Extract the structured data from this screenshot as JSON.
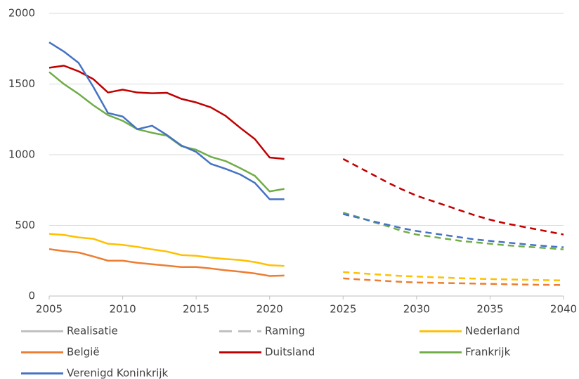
{
  "chart_data": {
    "type": "line",
    "x": [
      2005,
      2006,
      2007,
      2008,
      2009,
      2010,
      2011,
      2012,
      2013,
      2014,
      2015,
      2016,
      2017,
      2018,
      2019,
      2020,
      2021
    ],
    "x_forecast": [
      2025,
      2026,
      2027,
      2028,
      2029,
      2030,
      2031,
      2032,
      2033,
      2034,
      2035,
      2036,
      2037,
      2038,
      2039,
      2040
    ],
    "styles": [
      {
        "name": "Realisatie",
        "color": "#bfbfbf",
        "dashed": false
      },
      {
        "name": "Raming",
        "color": "#bfbfbf",
        "dashed": true
      }
    ],
    "series": [
      {
        "name": "Nederland",
        "color": "#ffc000",
        "values": [
          440,
          432,
          415,
          405,
          370,
          362,
          348,
          330,
          315,
          290,
          285,
          272,
          262,
          255,
          240,
          218,
          213
        ],
        "forecast": [
          170,
          162,
          155,
          148,
          142,
          138,
          134,
          130,
          126,
          123,
          120,
          118,
          116,
          114,
          112,
          110
        ]
      },
      {
        "name": "België",
        "color": "#ed7d31",
        "values": [
          332,
          318,
          308,
          280,
          250,
          250,
          235,
          225,
          215,
          205,
          205,
          195,
          182,
          172,
          160,
          142,
          145
        ],
        "forecast": [
          125,
          118,
          112,
          106,
          100,
          96,
          94,
          92,
          90,
          88,
          86,
          84,
          82,
          80,
          79,
          78
        ]
      },
      {
        "name": "Duitsland",
        "color": "#c00000",
        "values": [
          1615,
          1630,
          1590,
          1535,
          1440,
          1460,
          1440,
          1435,
          1438,
          1395,
          1370,
          1335,
          1275,
          1190,
          1110,
          980,
          970
        ],
        "forecast": [
          970,
          915,
          860,
          805,
          755,
          710,
          675,
          640,
          605,
          570,
          540,
          515,
          495,
          475,
          455,
          435
        ]
      },
      {
        "name": "Frankrijk",
        "color": "#70ad47",
        "values": [
          1585,
          1500,
          1430,
          1350,
          1280,
          1240,
          1180,
          1155,
          1135,
          1060,
          1035,
          985,
          955,
          905,
          850,
          740,
          758
        ],
        "forecast": [
          590,
          560,
          525,
          495,
          460,
          435,
          420,
          405,
          390,
          380,
          370,
          360,
          352,
          345,
          338,
          330
        ]
      },
      {
        "name": "Verenigd Koninkrijk",
        "color": "#4472c4",
        "values": [
          1795,
          1730,
          1650,
          1480,
          1295,
          1270,
          1180,
          1205,
          1140,
          1065,
          1020,
          935,
          900,
          860,
          800,
          685,
          685
        ],
        "forecast": [
          580,
          555,
          530,
          505,
          480,
          460,
          445,
          430,
          415,
          400,
          390,
          380,
          370,
          360,
          352,
          345
        ]
      }
    ],
    "xlim": [
      2005,
      2040
    ],
    "xticks": [
      2005,
      2010,
      2015,
      2020,
      2025,
      2030,
      2035,
      2040
    ],
    "ylim": [
      0,
      2000
    ],
    "yticks": [
      0,
      500,
      1000,
      1500,
      2000
    ],
    "grid": true
  }
}
